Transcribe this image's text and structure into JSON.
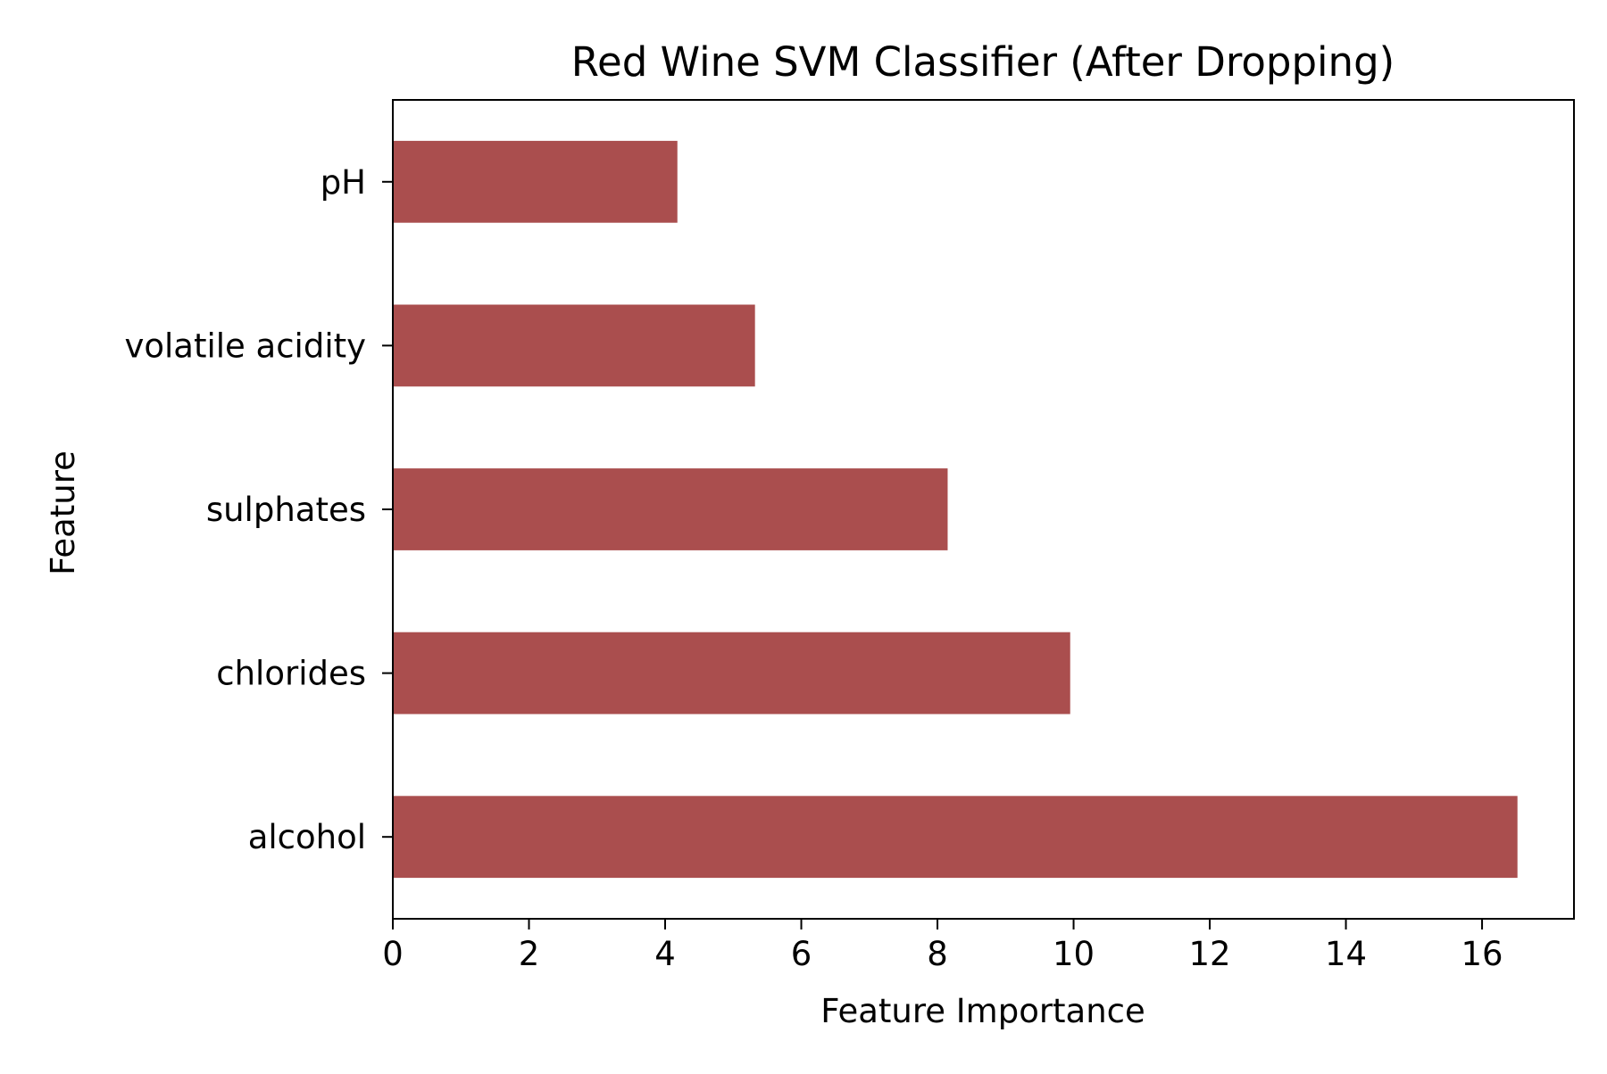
{
  "chart_data": {
    "type": "bar",
    "orientation": "horizontal",
    "title": "Red Wine SVM Classifier (After Dropping)",
    "xlabel": "Feature Importance",
    "ylabel": "Feature",
    "categories": [
      "alcohol",
      "chlorides",
      "sulphates",
      "volatile acidity",
      "pH"
    ],
    "values": [
      16.52,
      9.95,
      8.15,
      5.32,
      4.18
    ],
    "xlim": [
      0,
      17.35
    ],
    "xticks": [
      0,
      2,
      4,
      6,
      8,
      10,
      12,
      14,
      16
    ],
    "xtick_labels": [
      "0",
      "2",
      "4",
      "6",
      "8",
      "10",
      "12",
      "14",
      "16"
    ],
    "bar_color": "#aa4e4e",
    "grid": false,
    "legend": "none"
  }
}
